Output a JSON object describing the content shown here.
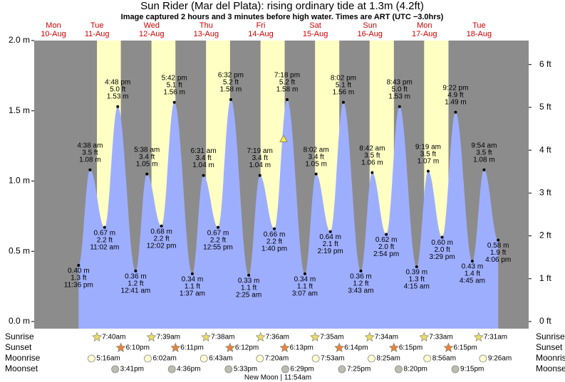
{
  "chart_data": {
    "type": "tide",
    "title": "Sun Rider (Mar del Plata): rising  ordinary tide at 1.3m (4.2ft)",
    "subtitle": "Image captured 2 hours and 3 minutes before high water. Times are ART (UTC −3.0hrs)",
    "ylim": [
      0,
      2
    ],
    "yticks": [
      {
        "value": 0,
        "label": "0.0 m"
      },
      {
        "value": 0.5,
        "label": "0.5 m"
      },
      {
        "value": 1,
        "label": "1.0 m"
      },
      {
        "value": 1.5,
        "label": "1.5 m"
      },
      {
        "value": 2,
        "label": "2.0 m"
      }
    ],
    "y2lim": [
      0,
      6.56
    ],
    "y2ticks": [
      {
        "value": 0,
        "label": "0 ft"
      },
      {
        "value": 1,
        "label": "1 ft"
      },
      {
        "value": 2,
        "label": "2 ft"
      },
      {
        "value": 3,
        "label": "3 ft"
      },
      {
        "value": 4,
        "label": "4 ft"
      },
      {
        "value": 5,
        "label": "5 ft"
      },
      {
        "value": 6,
        "label": "6 ft"
      }
    ],
    "current_height_m": 1.3,
    "colors": {
      "plot": "#8c8c8c",
      "daylight": "#ffffc4",
      "water": "#9eaeff"
    },
    "row_labels": {
      "sunrise": "Sunrise",
      "sunset": "Sunset",
      "moonrise": "Moonrise",
      "moonset": "Moonset"
    },
    "moon_phase": "New Moon | 11:54am",
    "days": [
      {
        "name": "Mon",
        "date": "10-Aug",
        "tides": [
          {
            "time": "11:36 pm",
            "ft": "1.3 ft",
            "m": {
              "value": 0.4,
              "label": "0.40 m"
            }
          }
        ]
      },
      {
        "name": "Tue",
        "date": "11-Aug",
        "sunrise": "7:40am",
        "sunset": "6:10pm",
        "moonrise": "5:16am",
        "moonset": "3:41pm",
        "tides": [
          {
            "time": "4:38 am",
            "ft": "3.5 ft",
            "m": {
              "value": 1.08,
              "label": "1.08 m"
            }
          },
          {
            "time": "11:02 am",
            "ft": "2.2 ft",
            "m": {
              "value": 0.67,
              "label": "0.67 m"
            }
          },
          {
            "time": "4:48 pm",
            "ft": "5.0 ft",
            "m": {
              "value": 1.53,
              "label": "1.53 m"
            }
          }
        ]
      },
      {
        "name": "Wed",
        "date": "12-Aug",
        "sunrise": "7:39am",
        "sunset": "6:11pm",
        "moonrise": "6:02am",
        "moonset": "4:36pm",
        "tides": [
          {
            "time": "12:41 am",
            "ft": "1.2 ft",
            "m": {
              "value": 0.36,
              "label": "0.36 m"
            }
          },
          {
            "time": "5:38 am",
            "ft": "3.4 ft",
            "m": {
              "value": 1.05,
              "label": "1.05 m"
            }
          },
          {
            "time": "12:02 pm",
            "ft": "2.2 ft",
            "m": {
              "value": 0.68,
              "label": "0.68 m"
            }
          },
          {
            "time": "5:42 pm",
            "ft": "5.1 ft",
            "m": {
              "value": 1.56,
              "label": "1.56 m"
            }
          }
        ]
      },
      {
        "name": "Thu",
        "date": "13-Aug",
        "sunrise": "7:38am",
        "sunset": "6:12pm",
        "moonrise": "6:43am",
        "moonset": "5:33pm",
        "tides": [
          {
            "time": "1:37 am",
            "ft": "1.1 ft",
            "m": {
              "value": 0.34,
              "label": "0.34 m"
            }
          },
          {
            "time": "6:31 am",
            "ft": "3.4 ft",
            "m": {
              "value": 1.04,
              "label": "1.04 m"
            }
          },
          {
            "time": "12:55 pm",
            "ft": "2.2 ft",
            "m": {
              "value": 0.67,
              "label": "0.67 m"
            }
          },
          {
            "time": "6:32 pm",
            "ft": "5.2 ft",
            "m": {
              "value": 1.58,
              "label": "1.58 m"
            }
          }
        ]
      },
      {
        "name": "Fri",
        "date": "14-Aug",
        "sunrise": "7:36am",
        "sunset": "6:13pm",
        "moonrise": "7:20am",
        "moonset": "6:29pm",
        "tides": [
          {
            "time": "2:25 am",
            "ft": "1.1 ft",
            "m": {
              "value": 0.33,
              "label": "0.33 m"
            }
          },
          {
            "time": "7:19 am",
            "ft": "3.4 ft",
            "m": {
              "value": 1.04,
              "label": "1.04 m"
            }
          },
          {
            "time": "1:40 pm",
            "ft": "2.2 ft",
            "m": {
              "value": 0.66,
              "label": "0.66 m"
            }
          },
          {
            "time": "7:18 pm",
            "ft": "5.2 ft",
            "m": {
              "value": 1.58,
              "label": "1.58 m"
            }
          }
        ]
      },
      {
        "name": "Sat",
        "date": "15-Aug",
        "sunrise": "7:35am",
        "sunset": "6:14pm",
        "moonrise": "7:53am",
        "moonset": "7:25pm",
        "tides": [
          {
            "time": "3:07 am",
            "ft": "1.1 ft",
            "m": {
              "value": 0.34,
              "label": "0.34 m"
            }
          },
          {
            "time": "8:02 am",
            "ft": "3.4 ft",
            "m": {
              "value": 1.05,
              "label": "1.05 m"
            }
          },
          {
            "time": "2:19 pm",
            "ft": "2.1 ft",
            "m": {
              "value": 0.64,
              "label": "0.64 m"
            }
          },
          {
            "time": "8:02 pm",
            "ft": "5.1 ft",
            "m": {
              "value": 1.56,
              "label": "1.56 m"
            }
          }
        ]
      },
      {
        "name": "Sun",
        "date": "16-Aug",
        "sunrise": "7:34am",
        "sunset": "6:15pm",
        "moonrise": "8:25am",
        "moonset": "8:20pm",
        "tides": [
          {
            "time": "3:43 am",
            "ft": "1.2 ft",
            "m": {
              "value": 0.36,
              "label": "0.36 m"
            }
          },
          {
            "time": "8:42 am",
            "ft": "3.5 ft",
            "m": {
              "value": 1.06,
              "label": "1.06 m"
            }
          },
          {
            "time": "2:54 pm",
            "ft": "2.0 ft",
            "m": {
              "value": 0.62,
              "label": "0.62 m"
            }
          },
          {
            "time": "8:43 pm",
            "ft": "5.0 ft",
            "m": {
              "value": 1.53,
              "label": "1.53 m"
            }
          }
        ]
      },
      {
        "name": "Mon",
        "date": "17-Aug",
        "sunrise": "7:33am",
        "sunset": "6:15pm",
        "moonrise": "8:56am",
        "moonset": "9:15pm",
        "tides": [
          {
            "time": "4:15 am",
            "ft": "1.3 ft",
            "m": {
              "value": 0.39,
              "label": "0.39 m"
            }
          },
          {
            "time": "9:19 am",
            "ft": "3.5 ft",
            "m": {
              "value": 1.07,
              "label": "1.07 m"
            }
          },
          {
            "time": "3:29 pm",
            "ft": "2.0 ft",
            "m": {
              "value": 0.6,
              "label": "0.60 m"
            }
          },
          {
            "time": "9:22 pm",
            "ft": "4.9 ft",
            "m": {
              "value": 1.49,
              "label": "1.49 m"
            }
          }
        ]
      },
      {
        "name": "Tue",
        "date": "18-Aug",
        "sunrise": "7:31am",
        "moonrise": "9:26am",
        "tides": [
          {
            "time": "4:45 am",
            "ft": "1.4 ft",
            "m": {
              "value": 0.43,
              "label": "0.43 m"
            }
          },
          {
            "time": "9:54 am",
            "ft": "3.5 ft",
            "m": {
              "value": 1.08,
              "label": "1.08 m"
            }
          },
          {
            "time": "4:06 pm",
            "ft": "1.9 ft",
            "m": {
              "value": 0.58,
              "label": "0.58 m"
            }
          }
        ]
      }
    ]
  }
}
